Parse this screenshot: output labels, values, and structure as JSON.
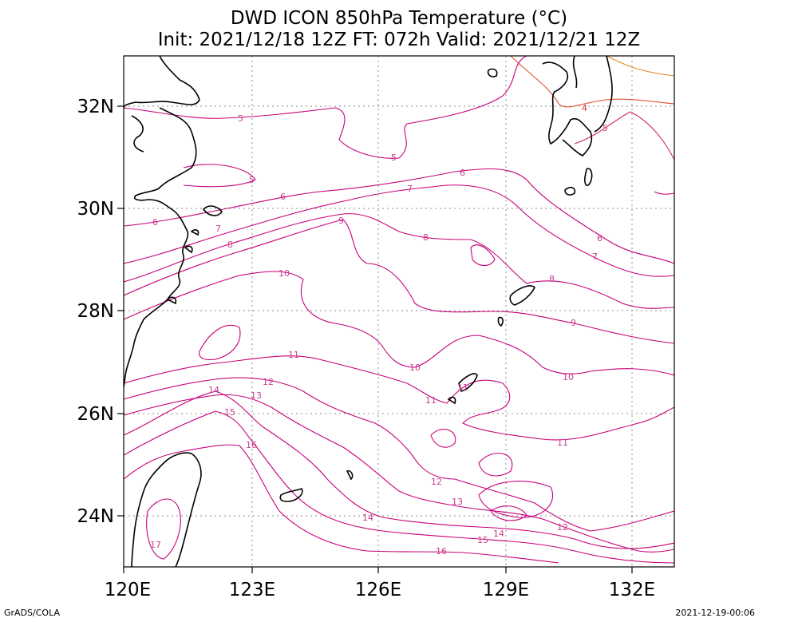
{
  "title": {
    "line1": "DWD ICON 850hPa Temperature (°C)",
    "line2": "Init: 2021/12/18 12Z  FT: 072h  Valid: 2021/12/21 12Z"
  },
  "axes": {
    "x_ticks": [
      "120E",
      "123E",
      "126E",
      "129E",
      "132E"
    ],
    "y_ticks": [
      "32N",
      "30N",
      "28N",
      "26N",
      "24N"
    ]
  },
  "contour_labels": [
    "5",
    "5",
    "5",
    "6",
    "6",
    "6",
    "7",
    "7",
    "8",
    "8",
    "9",
    "9",
    "10",
    "10",
    "10",
    "11",
    "11",
    "11",
    "11",
    "12",
    "12",
    "12",
    "13",
    "13",
    "14",
    "14",
    "14",
    "15",
    "15",
    "16",
    "16",
    "17",
    "4",
    "5",
    "6",
    "7",
    "8"
  ],
  "colors": {
    "contour": "#c8007a",
    "contour_warm": "#e05030",
    "contour_warmest": "#e08a20",
    "coast": "#000000",
    "grid": "#8c8c8c"
  },
  "footer": {
    "left": "GrADS/COLA",
    "right": "2021-12-19-00:06"
  }
}
